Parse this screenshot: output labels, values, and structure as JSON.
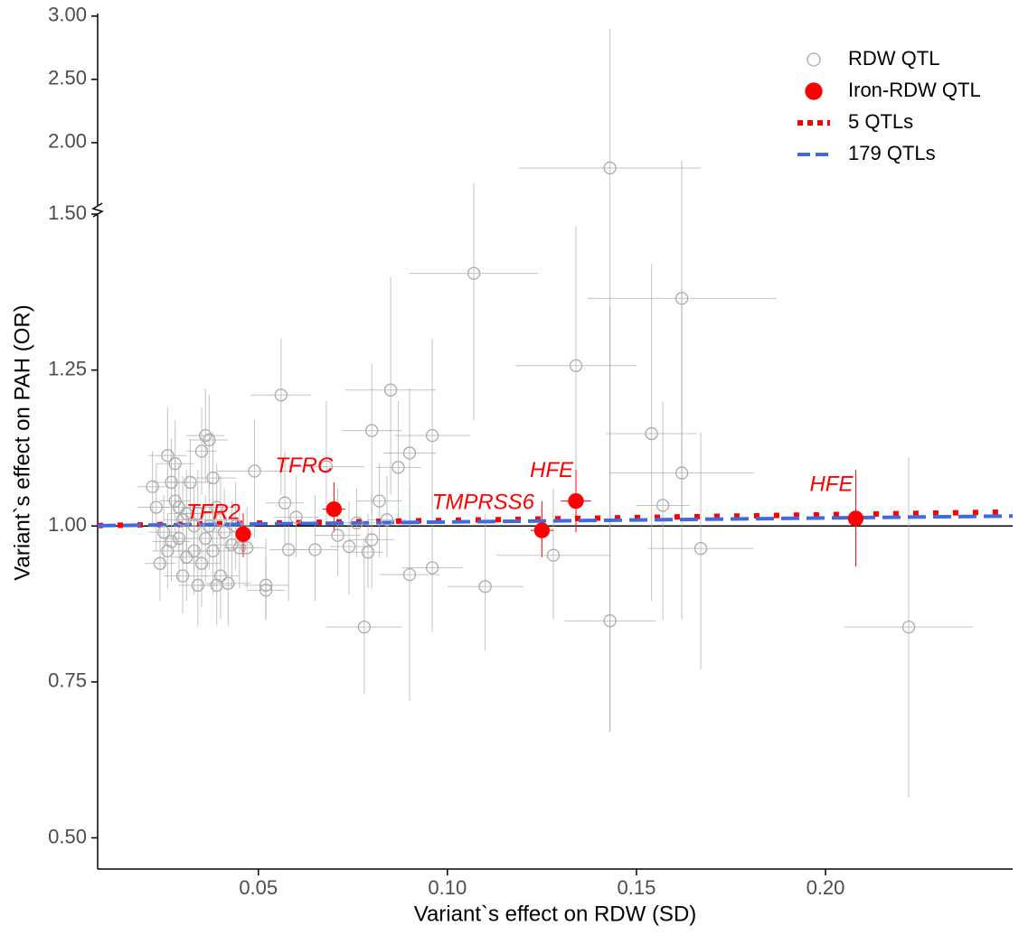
{
  "chart_data": {
    "type": "scatter",
    "x_label": "Variant`s effect on RDW (SD)",
    "y_label": "Variant`s effect on PAH (OR)",
    "xlim": [
      0.0075,
      0.2495
    ],
    "xticks": [
      {
        "value": 0.05,
        "label": "0.05"
      },
      {
        "value": 0.1,
        "label": "0.10"
      },
      {
        "value": 0.15,
        "label": "0.15"
      },
      {
        "value": 0.2,
        "label": "0.20"
      }
    ],
    "ylim_lower": [
      0.45,
      1.5
    ],
    "ylim_upper": [
      1.5,
      3.02
    ],
    "yticks": [
      {
        "value": 0.5,
        "label": "0.50"
      },
      {
        "value": 0.75,
        "label": "0.75"
      },
      {
        "value": 1,
        "label": "1.00"
      },
      {
        "value": 1.25,
        "label": "1.25"
      },
      {
        "value": 1.5,
        "label": "1.50"
      },
      {
        "value": 2,
        "label": "2.00"
      },
      {
        "value": 2.5,
        "label": "2.50"
      },
      {
        "value": 3,
        "label": "3.00"
      }
    ],
    "reference_line": 1,
    "series": [
      {
        "name": "RDW QTL",
        "color": "#aaaaaa",
        "x": [
          0.107,
          0.143,
          0.162,
          0.134,
          0.154,
          0.162,
          0.157,
          0.167,
          0.143,
          0.222,
          0.128,
          0.11,
          0.096,
          0.096,
          0.09,
          0.09,
          0.085,
          0.087,
          0.08,
          0.078,
          0.068,
          0.056,
          0.049,
          0.052,
          0.052,
          0.082,
          0.08,
          0.074,
          0.071,
          0.065,
          0.058,
          0.06,
          0.057,
          0.076,
          0.084,
          0.079,
          0.022,
          0.023,
          0.024,
          0.026,
          0.027,
          0.028,
          0.029,
          0.03,
          0.031,
          0.032,
          0.033,
          0.034,
          0.035,
          0.036,
          0.037,
          0.038,
          0.038,
          0.039,
          0.04,
          0.041,
          0.042,
          0.043,
          0.044,
          0.045,
          0.047,
          0.025,
          0.027,
          0.03,
          0.033,
          0.036,
          0.039,
          0.031,
          0.035,
          0.028,
          0.026,
          0.037,
          0.04,
          0.034,
          0.029
        ],
        "values": [
          1.405,
          1.8,
          1.365,
          1.257,
          1.148,
          1.085,
          1.033,
          0.964,
          0.848,
          0.838,
          0.953,
          0.903,
          1.145,
          0.933,
          1.117,
          0.922,
          1.218,
          1.094,
          1.153,
          0.838,
          1.095,
          1.21,
          1.088,
          0.905,
          0.897,
          1.04,
          0.978,
          0.967,
          0.985,
          0.962,
          0.962,
          1.014,
          1.037,
          1.005,
          1.01,
          0.958,
          1.063,
          1.03,
          0.94,
          1.113,
          1.07,
          1.1,
          0.98,
          0.92,
          1.02,
          1.07,
          0.96,
          0.905,
          1.12,
          1.145,
          1.138,
          1.077,
          0.96,
          0.905,
          0.92,
          0.99,
          0.908,
          0.97,
          1.0,
          0.965,
          0.965,
          0.99,
          0.975,
          1.01,
          1.0,
          0.98,
          1.03,
          0.95,
          0.94,
          1.04,
          0.96,
          1.0,
          1.01,
          1.02,
          1.03
        ],
        "xerr": [
          0.017,
          0.024,
          0.025,
          0.016,
          0.012,
          0.019,
          0.007,
          0.014,
          0.012,
          0.017,
          0.015,
          0.01,
          0.01,
          0.008,
          0.007,
          0.008,
          0.012,
          0.006,
          0.008,
          0.01,
          0.01,
          0.008,
          0.01,
          0.006,
          0.005,
          0.006,
          0.006,
          0.005,
          0.006,
          0.006,
          0.005,
          0.006,
          0.005,
          0.005,
          0.005,
          0.004,
          0.004,
          0.005,
          0.004,
          0.005,
          0.005,
          0.005,
          0.004,
          0.005,
          0.005,
          0.006,
          0.005,
          0.005,
          0.004,
          0.005,
          0.005,
          0.006,
          0.005,
          0.005,
          0.005,
          0.004,
          0.006,
          0.005,
          0.005,
          0.004,
          0.005,
          0.004,
          0.005,
          0.005,
          0.004,
          0.005,
          0.005,
          0.004,
          0.005,
          0.004,
          0.004,
          0.005,
          0.005,
          0.004,
          0.005
        ],
        "ylo": [
          1.17,
          0.67,
          1.02,
          1.03,
          0.88,
          0.85,
          0.85,
          0.77,
          0.67,
          0.565,
          0.85,
          0.8,
          1.03,
          0.83,
          1.0,
          0.72,
          1.05,
          1.0,
          1.02,
          0.73,
          1.0,
          1.05,
          0.98,
          0.85,
          0.85,
          0.95,
          0.9,
          0.89,
          0.92,
          0.88,
          0.88,
          0.95,
          0.97,
          0.95,
          0.95,
          0.9,
          1.0,
          0.96,
          0.88,
          1.04,
          1.0,
          1.03,
          0.91,
          0.86,
          0.95,
          1.0,
          0.89,
          0.84,
          1.05,
          1.07,
          1.06,
          1.0,
          0.89,
          0.84,
          0.85,
          0.92,
          0.84,
          0.9,
          0.93,
          0.9,
          0.9,
          0.93,
          0.91,
          0.94,
          0.93,
          0.91,
          0.96,
          0.88,
          0.87,
          0.97,
          0.9,
          0.93,
          0.94,
          0.95,
          0.96
        ],
        "yhi": [
          1.68,
          2.9,
          1.86,
          1.48,
          1.42,
          1.38,
          1.2,
          1.15,
          1.35,
          1.11,
          1.06,
          1.02,
          1.3,
          1.05,
          1.22,
          1.06,
          1.4,
          1.2,
          1.26,
          0.98,
          1.2,
          1.3,
          1.17,
          0.98,
          0.95,
          1.1,
          1.05,
          1.04,
          1.06,
          1.05,
          1.03,
          1.08,
          1.12,
          1.06,
          1.08,
          1.02,
          1.12,
          1.1,
          1.0,
          1.19,
          1.14,
          1.17,
          1.05,
          0.98,
          1.09,
          1.14,
          1.03,
          0.97,
          1.19,
          1.22,
          1.21,
          1.15,
          1.03,
          0.97,
          0.99,
          1.06,
          0.98,
          1.04,
          1.07,
          1.03,
          1.03,
          1.05,
          1.04,
          1.08,
          1.07,
          1.05,
          1.1,
          1.02,
          1.01,
          1.11,
          1.02,
          1.07,
          1.08,
          1.09,
          1.1
        ]
      },
      {
        "name": "Iron-RDW QTL",
        "color": "#ff0000",
        "x": [
          0.046,
          0.07,
          0.125,
          0.134,
          0.208
        ],
        "values": [
          0.987,
          1.027,
          0.993,
          1.04,
          1.012
        ],
        "xerr": [
          0.002,
          0.003,
          0.003,
          0.004,
          0.003
        ],
        "ylo": [
          0.95,
          0.99,
          0.95,
          0.99,
          0.935
        ],
        "yhi": [
          1.02,
          1.07,
          1.04,
          1.09,
          1.09
        ],
        "labels": [
          "TFR2",
          "TFRC",
          "TMPRSS6",
          "HFE",
          "HFE"
        ]
      }
    ],
    "lines": [
      {
        "name": "5 QTLs",
        "color": "#ff0000",
        "style": "dotted",
        "x": [
          0.0075,
          0.2495
        ],
        "values": [
          1.0007,
          1.0225
        ]
      },
      {
        "name": "179 QTLs",
        "color": "#4169e1",
        "style": "dashed",
        "x": [
          0.0075,
          0.2495
        ],
        "values": [
          1.0005,
          1.016
        ]
      }
    ]
  }
}
